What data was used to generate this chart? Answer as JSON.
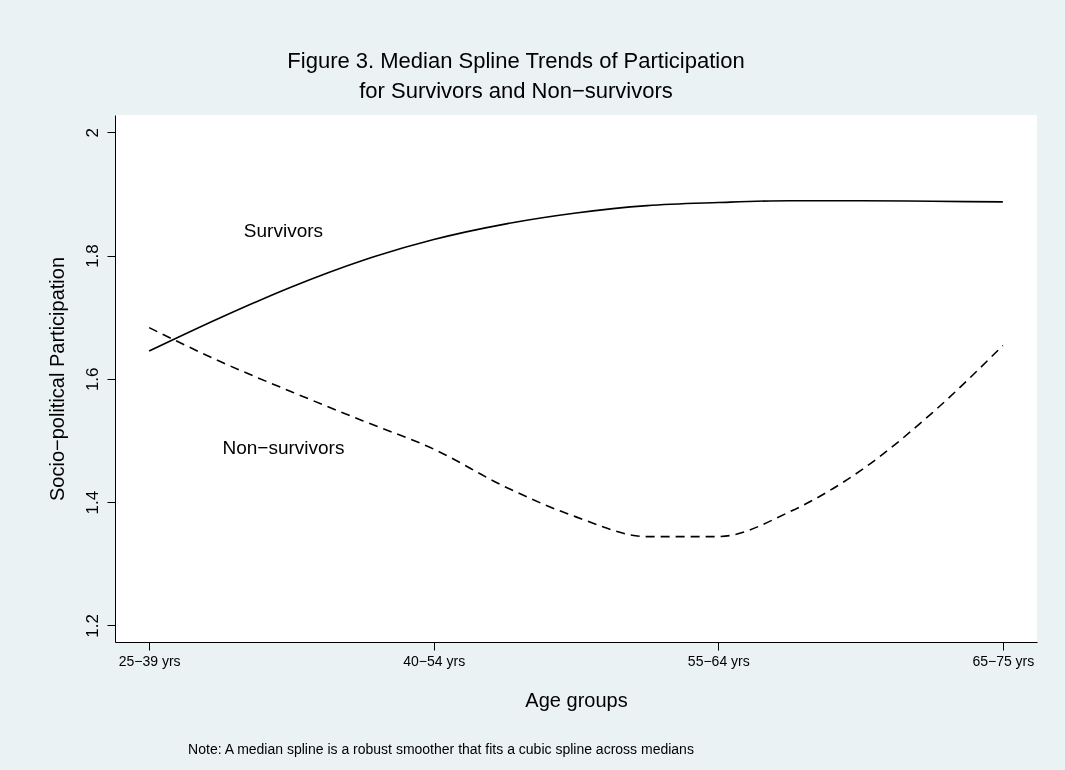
{
  "chart_data": {
    "type": "line",
    "title": "Figure 3. Median Spline Trends of Participation\nfor Survivors and Non−survivors",
    "xlabel": "Age groups",
    "ylabel": "Socio−political Participation",
    "annotations": [
      "Note: A median spline is a robust smoother that fits a cubic spline across medians"
    ],
    "categories": [
      "25−39 yrs",
      null,
      null,
      null,
      "40−54 yrs",
      null,
      null,
      null,
      "55−64 yrs",
      null,
      null,
      null,
      "65−75 yrs"
    ],
    "ylim": [
      1.173,
      2.028
    ],
    "yticks": [
      1.2,
      1.4,
      1.6,
      1.8,
      2
    ],
    "grid": false,
    "marker": "none",
    "series": [
      {
        "name": "Survivors",
        "color": "#000000",
        "line_style": "solid",
        "values": [
          1.645,
          1.699,
          1.749,
          1.792,
          1.826,
          1.851,
          1.869,
          1.881,
          1.886,
          1.889,
          1.889,
          1.888,
          1.887
        ]
      },
      {
        "name": "Non−survivors",
        "color": "#000000",
        "line_style": "dashed",
        "values": [
          1.683,
          1.628,
          1.579,
          1.532,
          1.486,
          1.425,
          1.376,
          1.344,
          1.344,
          1.384,
          1.451,
          1.544,
          1.654
        ]
      }
    ]
  }
}
